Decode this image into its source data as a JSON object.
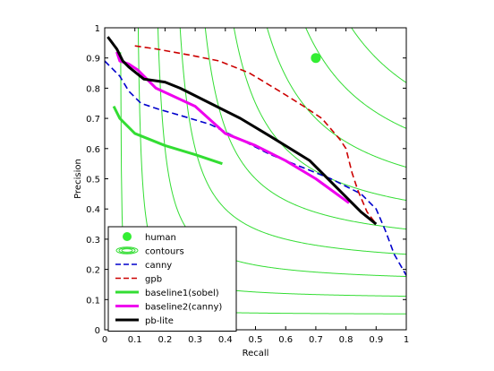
{
  "chart_data": {
    "type": "line",
    "title": "",
    "xlabel": "Recall",
    "ylabel": "Precision",
    "xlim": [
      0,
      1
    ],
    "ylim": [
      0,
      1
    ],
    "xticks": [
      "0",
      "0.1",
      "0.2",
      "0.3",
      "0.4",
      "0.5",
      "0.6",
      "0.7",
      "0.8",
      "0.9",
      "1"
    ],
    "yticks": [
      "0",
      "0.1",
      "0.2",
      "0.3",
      "0.4",
      "0.5",
      "0.6",
      "0.7",
      "0.8",
      "0.9",
      "1"
    ],
    "grid": false,
    "legend_position": "bottom-left",
    "contour_color": "#33dd33",
    "contour_f_levels": [
      0.1,
      0.2,
      0.3,
      0.4,
      0.5,
      0.6,
      0.7,
      0.8,
      0.9
    ],
    "series": [
      {
        "name": "human",
        "style": "marker",
        "color": "#33ee33",
        "x": [
          0.7
        ],
        "y": [
          0.9
        ]
      },
      {
        "name": "contours",
        "style": "contour-symbol",
        "color": "#33dd33",
        "x": [],
        "y": []
      },
      {
        "name": "canny",
        "style": "dashed",
        "color": "#0000cc",
        "x": [
          0.0,
          0.05,
          0.08,
          0.12,
          0.18,
          0.25,
          0.35,
          0.45,
          0.55,
          0.65,
          0.75,
          0.85,
          0.9,
          0.93,
          0.96,
          1.0
        ],
        "y": [
          0.89,
          0.84,
          0.79,
          0.75,
          0.73,
          0.71,
          0.68,
          0.63,
          0.58,
          0.54,
          0.5,
          0.45,
          0.4,
          0.33,
          0.25,
          0.18
        ]
      },
      {
        "name": "gpb",
        "style": "dashed",
        "color": "#cc0000",
        "x": [
          0.1,
          0.17,
          0.28,
          0.38,
          0.48,
          0.58,
          0.66,
          0.72,
          0.78,
          0.8,
          0.82,
          0.84,
          0.87,
          0.9
        ],
        "y": [
          0.94,
          0.93,
          0.91,
          0.89,
          0.85,
          0.79,
          0.74,
          0.7,
          0.63,
          0.6,
          0.52,
          0.46,
          0.39,
          0.35
        ]
      },
      {
        "name": "baseline1(sobel)",
        "style": "solid-thick",
        "color": "#33dd33",
        "x": [
          0.03,
          0.05,
          0.07,
          0.1,
          0.15,
          0.2,
          0.3,
          0.39
        ],
        "y": [
          0.74,
          0.7,
          0.68,
          0.65,
          0.63,
          0.61,
          0.58,
          0.55
        ]
      },
      {
        "name": "baseline2(canny)",
        "style": "solid-thick",
        "color": "#ee00ee",
        "x": [
          0.04,
          0.05,
          0.08,
          0.11,
          0.17,
          0.3,
          0.4,
          0.5,
          0.6,
          0.7,
          0.81
        ],
        "y": [
          0.92,
          0.89,
          0.88,
          0.86,
          0.8,
          0.74,
          0.65,
          0.61,
          0.56,
          0.5,
          0.42
        ]
      },
      {
        "name": "pb-lite",
        "style": "solid-thick",
        "color": "#000000",
        "x": [
          0.01,
          0.04,
          0.06,
          0.08,
          0.13,
          0.2,
          0.25,
          0.35,
          0.45,
          0.55,
          0.68,
          0.78,
          0.85,
          0.9
        ],
        "y": [
          0.97,
          0.93,
          0.89,
          0.87,
          0.83,
          0.82,
          0.8,
          0.75,
          0.7,
          0.64,
          0.56,
          0.46,
          0.39,
          0.35
        ]
      }
    ]
  }
}
